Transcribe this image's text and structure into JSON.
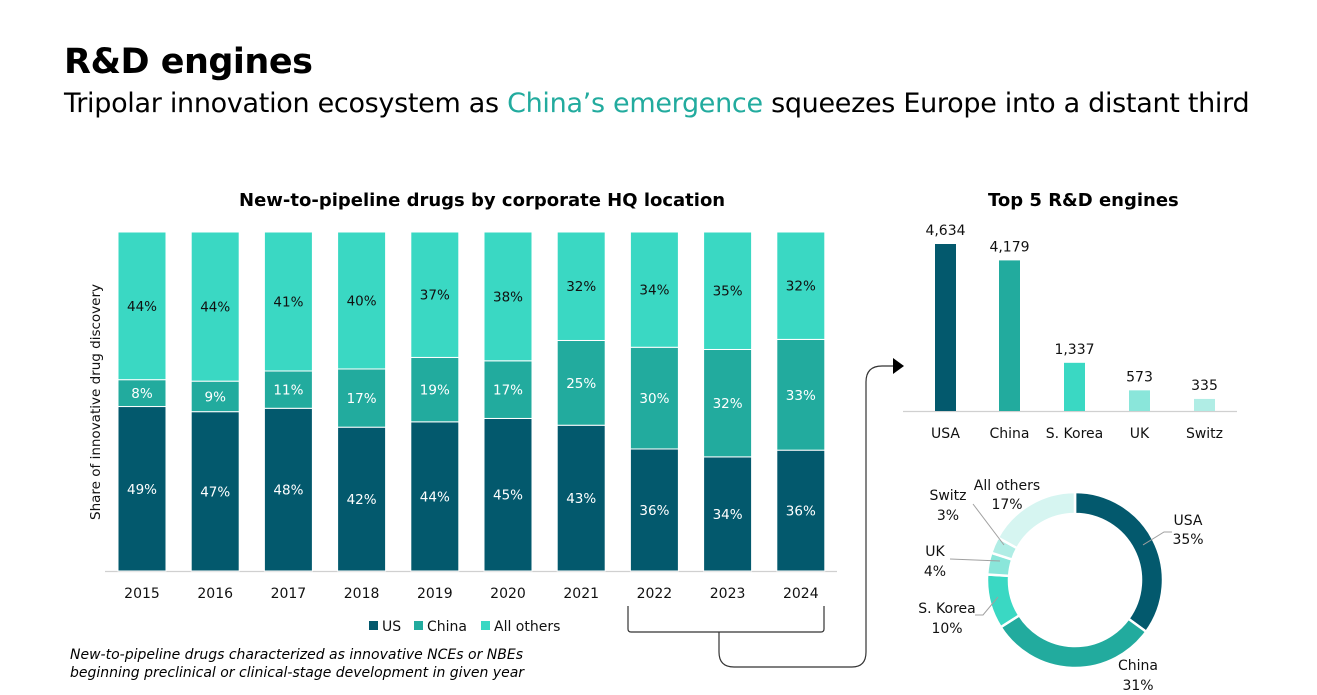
{
  "header": {
    "title": "R&D engines",
    "subtitle_pre": "Tripolar innovation ecosystem as ",
    "subtitle_highlight": "China’s emergence",
    "subtitle_post": " squeezes Europe into a distant third"
  },
  "colors": {
    "us": "#03596d",
    "china": "#22ab9e",
    "others": "#3ad8c3",
    "uk": "#8ae6da",
    "switz": "#b0ede5",
    "all_others_pie": "#d6f5f1",
    "highlight": "#22ab9e"
  },
  "footnote": {
    "line1": "New-to-pipeline drugs characterized as innovative NCEs or NBEs",
    "line2": "beginning preclinical or clinical-stage development in given year"
  },
  "chart_data": [
    {
      "type": "bar",
      "stacked": true,
      "title": "New-to-pipeline drugs by corporate HQ location",
      "xlabel": "",
      "ylabel": "Share of innovative drug discovery",
      "categories": [
        "2015",
        "2016",
        "2017",
        "2018",
        "2019",
        "2020",
        "2021",
        "2022",
        "2023",
        "2024"
      ],
      "series": [
        {
          "name": "US",
          "values": [
            49,
            47,
            48,
            42,
            44,
            45,
            43,
            36,
            34,
            36
          ]
        },
        {
          "name": "China",
          "values": [
            8,
            9,
            11,
            17,
            19,
            17,
            25,
            30,
            32,
            33
          ]
        },
        {
          "name": "All others",
          "values": [
            44,
            44,
            41,
            40,
            37,
            38,
            32,
            34,
            35,
            32
          ]
        }
      ],
      "value_format": "percent",
      "legend": [
        "US",
        "China",
        "All others"
      ],
      "legend_position": "bottom",
      "grid": false,
      "annotation": "bracket over 2022-2024 with arrow to Top 5 R&D engines"
    },
    {
      "type": "bar",
      "title": "Top 5 R&D engines",
      "categories": [
        "USA",
        "China",
        "S. Korea",
        "UK",
        "Switz"
      ],
      "values": [
        4634,
        4179,
        1337,
        573,
        335
      ],
      "labels": [
        "4,634",
        "4,179",
        "1,337",
        "573",
        "335"
      ],
      "grid": false
    },
    {
      "type": "pie",
      "donut": true,
      "categories": [
        "USA",
        "China",
        "S. Korea",
        "UK",
        "Switz",
        "All others"
      ],
      "values": [
        35,
        31,
        10,
        4,
        3,
        17
      ],
      "labels": [
        "35%",
        "31%",
        "10%",
        "4%",
        "3%",
        "17%"
      ]
    }
  ]
}
